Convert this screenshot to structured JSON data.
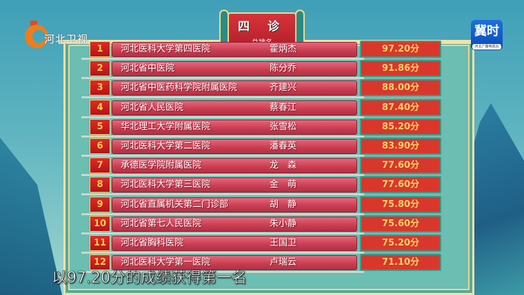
{
  "channel_logo": "河北卫视",
  "brand_logo": {
    "main": "冀时",
    "sub": "河北广播电视台"
  },
  "header": {
    "title": "四 诊",
    "subtitle": "总排名"
  },
  "rows": [
    {
      "rank": "1",
      "hospital": "河北医科大学第四医院",
      "doctor": "霍炳杰",
      "score": "97.20分"
    },
    {
      "rank": "2",
      "hospital": "河北省中医院",
      "doctor": "陈分乔",
      "score": "91.86分"
    },
    {
      "rank": "3",
      "hospital": "河北省中医药科学院附属医院",
      "doctor": "齐建兴",
      "score": "88.00分"
    },
    {
      "rank": "4",
      "hospital": "河北省人民医院",
      "doctor": "蔡春江",
      "score": "87.40分"
    },
    {
      "rank": "5",
      "hospital": "华北理工大学附属医院",
      "doctor": "张雪松",
      "score": "85.20分"
    },
    {
      "rank": "6",
      "hospital": "河北医科大学第二医院",
      "doctor": "潘春英",
      "score": "83.90分"
    },
    {
      "rank": "7",
      "hospital": "承德医学院附属医院",
      "doctor": "龙　森",
      "score": "77.60分"
    },
    {
      "rank": "8",
      "hospital": "河北医科大学第三医院",
      "doctor": "金　萌",
      "score": "77.60分"
    },
    {
      "rank": "9",
      "hospital": "河北省直属机关第二门诊部",
      "doctor": "胡　静",
      "score": "75.80分"
    },
    {
      "rank": "10",
      "hospital": "河北省第七人民医院",
      "doctor": "朱小静",
      "score": "75.60分"
    },
    {
      "rank": "11",
      "hospital": "河北省胸科医院",
      "doctor": "王国卫",
      "score": "75.20分"
    },
    {
      "rank": "12",
      "hospital": "河北医科大学第一医院",
      "doctor": "卢瑞云",
      "score": "71.10分"
    }
  ],
  "caption": "以97.20分的成绩获得第一名"
}
